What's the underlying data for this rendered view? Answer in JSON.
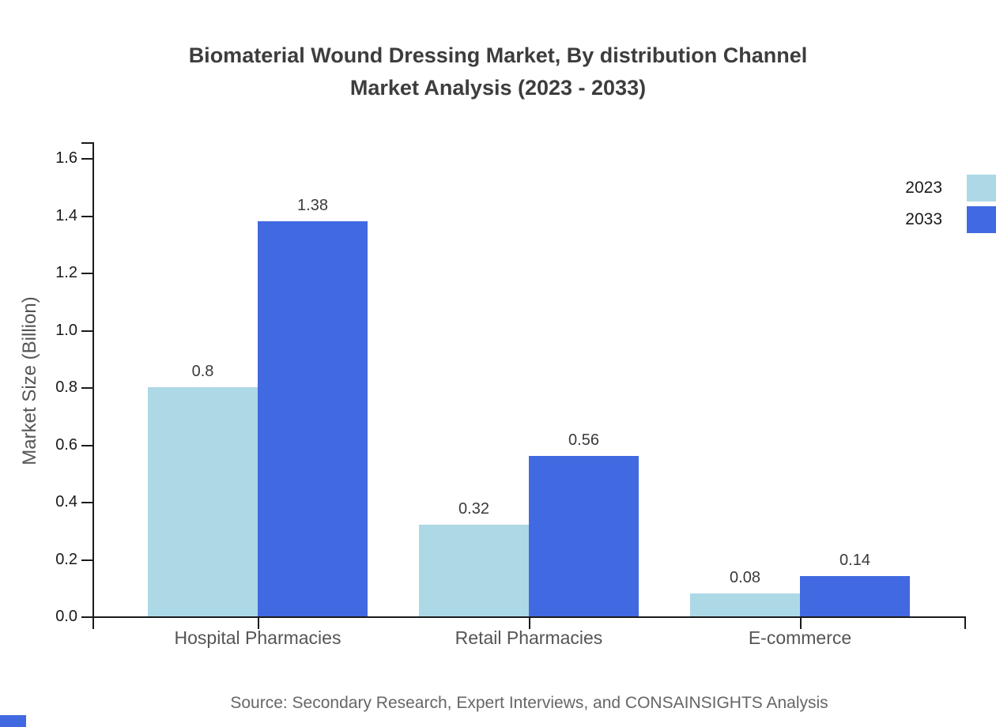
{
  "title": {
    "line1": "Biomaterial Wound Dressing Market, By distribution Channel",
    "line2": "Market Analysis (2023 - 2033)"
  },
  "source_text": "Source: Secondary Research, Expert Interviews, and CONSAINSIGHTS Analysis",
  "chart_data": {
    "type": "bar",
    "title": "Biomaterial Wound Dressing Market, By distribution Channel Market Analysis (2023 - 2033)",
    "categories": [
      "Hospital Pharmacies",
      "Retail Pharmacies",
      "E-commerce"
    ],
    "series": [
      {
        "name": "2023",
        "color": "#ADD8E6",
        "values": [
          0.8,
          0.32,
          0.08
        ]
      },
      {
        "name": "2033",
        "color": "#4169E1",
        "values": [
          1.38,
          0.56,
          0.14
        ]
      }
    ],
    "value_labels": [
      [
        "0.8",
        "0.32",
        "0.08"
      ],
      [
        "1.38",
        "0.56",
        "0.14"
      ]
    ],
    "xlabel": "",
    "ylabel": "Market Size (Billion)",
    "ylim": [
      0,
      1.6
    ],
    "yticks": [
      "0.0",
      "0.2",
      "0.4",
      "0.6",
      "0.8",
      "1.0",
      "1.2",
      "1.4",
      "1.6"
    ],
    "grid": false,
    "legend_position": "top-right",
    "bar_value_labels": true
  },
  "colors": {
    "series_2023": "#ADD8E6",
    "series_2033": "#4169E1",
    "axis": "#1a1a1a",
    "title_text": "#3d3d3d",
    "muted_text": "#555555",
    "source_text": "#666666",
    "background": "#ffffff"
  }
}
